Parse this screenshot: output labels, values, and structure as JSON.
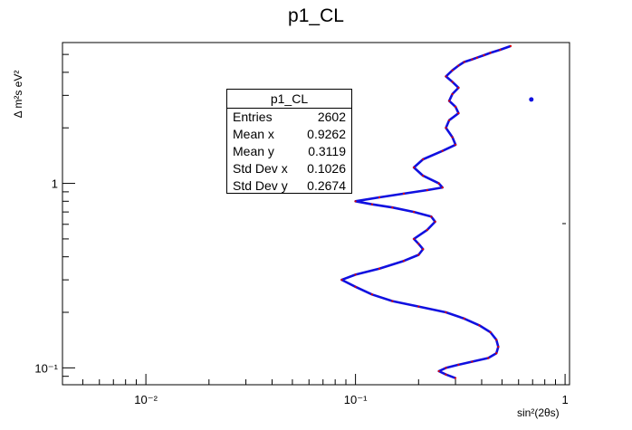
{
  "title": "p1_CL",
  "stats": {
    "title": "p1_CL",
    "rows": [
      {
        "label": "Entries",
        "value": "2602"
      },
      {
        "label": "Mean x",
        "value": "0.9262"
      },
      {
        "label": "Mean y",
        "value": "0.3119"
      },
      {
        "label": "Std Dev x",
        "value": "0.1026"
      },
      {
        "label": "Std Dev y",
        "value": "0.2674"
      }
    ]
  },
  "chart_data": {
    "type": "line",
    "title": "p1_CL",
    "xlabel": "sin²(2θs)",
    "ylabel": "Δ m²s eV²",
    "xscale": "log",
    "yscale": "log",
    "xlim": [
      0.004,
      1.05
    ],
    "ylim": [
      0.081,
      5.8
    ],
    "x_ticks": [
      {
        "value": 0.01,
        "label": "10⁻²"
      },
      {
        "value": 0.1,
        "label": "10⁻¹"
      },
      {
        "value": 1,
        "label": "1"
      }
    ],
    "y_ticks": [
      {
        "value": 0.1,
        "label": "10⁻¹"
      },
      {
        "value": 1,
        "label": "1"
      }
    ],
    "grid": false,
    "line_color": "#1010e0",
    "marker_color": "#e00000",
    "series": [
      {
        "x": [
          0.3,
          0.27,
          0.25,
          0.27,
          0.31,
          0.36,
          0.43,
          0.47,
          0.48,
          0.47,
          0.44,
          0.39,
          0.33,
          0.27,
          0.2,
          0.15,
          0.12,
          0.1,
          0.086,
          0.1,
          0.13,
          0.17,
          0.2,
          0.21,
          0.2,
          0.19,
          0.22,
          0.24,
          0.23,
          0.19,
          0.15,
          0.12,
          0.1,
          0.13,
          0.17,
          0.22,
          0.26,
          0.25,
          0.21,
          0.19,
          0.21,
          0.26,
          0.3,
          0.29,
          0.27,
          0.28,
          0.31,
          0.3,
          0.28,
          0.29,
          0.31,
          0.29,
          0.27,
          0.29,
          0.31,
          0.33,
          0.36,
          0.38,
          0.41,
          0.44,
          0.49,
          0.55
        ],
        "y": [
          0.088,
          0.092,
          0.096,
          0.1,
          0.104,
          0.108,
          0.113,
          0.12,
          0.13,
          0.142,
          0.156,
          0.17,
          0.185,
          0.2,
          0.215,
          0.23,
          0.25,
          0.275,
          0.3,
          0.32,
          0.345,
          0.38,
          0.41,
          0.44,
          0.47,
          0.5,
          0.56,
          0.62,
          0.66,
          0.7,
          0.74,
          0.77,
          0.8,
          0.84,
          0.88,
          0.92,
          0.95,
          1.0,
          1.1,
          1.22,
          1.35,
          1.5,
          1.62,
          1.78,
          2.0,
          2.2,
          2.4,
          2.6,
          2.8,
          3.05,
          3.3,
          3.55,
          3.8,
          4.1,
          4.35,
          4.55,
          4.7,
          4.8,
          4.95,
          5.1,
          5.3,
          5.55
        ]
      },
      {
        "x": [
          0.69
        ],
        "y": [
          2.85
        ]
      }
    ]
  }
}
